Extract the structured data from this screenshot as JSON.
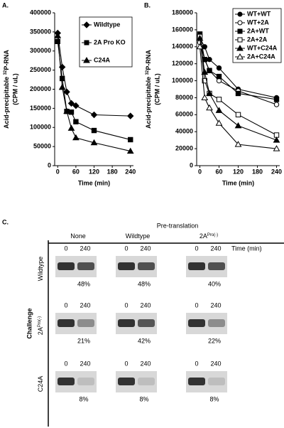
{
  "chart_data": [
    {
      "type": "line",
      "panel_label": "A.",
      "y_label": [
        "Acid-precipitable ",
        "32",
        "P-RNA"
      ],
      "y_label_2": "(CPM / uL)",
      "x_label": "Time (min)",
      "x": [
        0,
        15,
        30,
        45,
        60,
        120,
        240
      ],
      "xlim": [
        -10,
        250
      ],
      "xticks": [
        0,
        60,
        120,
        180,
        240
      ],
      "ylim": [
        0,
        400000
      ],
      "yticks": [
        0,
        50000,
        100000,
        150000,
        200000,
        250000,
        300000,
        350000,
        400000
      ],
      "series": [
        {
          "name": "Wildtype",
          "color": "#000000",
          "marker": "diamond",
          "filled": true,
          "values": [
            347000,
            258000,
            193000,
            163000,
            157000,
            133000,
            130000
          ]
        },
        {
          "name": "2A Pro KO",
          "color": "#000000",
          "marker": "square",
          "filled": true,
          "values": [
            325000,
            228000,
            142000,
            140000,
            115000,
            92000,
            68000
          ]
        },
        {
          "name": "C24A",
          "color": "#000000",
          "marker": "triangle",
          "filled": true,
          "values": [
            340000,
            205000,
            142000,
            98000,
            73000,
            60000,
            38000
          ]
        }
      ]
    },
    {
      "type": "line",
      "panel_label": "B.",
      "y_label": [
        "Acid-precipitable ",
        "32",
        "P-RNA"
      ],
      "y_label_2": "(CPM / uL)",
      "x_label": "Time (min)",
      "x": [
        0,
        15,
        30,
        60,
        120,
        240
      ],
      "xlim": [
        -10,
        250
      ],
      "xticks": [
        0,
        60,
        120,
        180,
        240
      ],
      "ylim": [
        0,
        180000
      ],
      "yticks": [
        0,
        20000,
        40000,
        60000,
        80000,
        100000,
        120000,
        140000,
        160000,
        180000
      ],
      "series": [
        {
          "name": "WT+WT",
          "color": "#000000",
          "marker": "circle",
          "filled": true,
          "values": [
            150000,
            140000,
            125000,
            115000,
            90000,
            80000
          ]
        },
        {
          "name": "WT+2A",
          "color": "#000000",
          "marker": "circle",
          "filled": false,
          "values": [
            145000,
            125000,
            112000,
            100000,
            88000,
            72000
          ]
        },
        {
          "name": "2A+WT",
          "color": "#000000",
          "marker": "square",
          "filled": true,
          "values": [
            155000,
            125000,
            112000,
            105000,
            85000,
            78000
          ]
        },
        {
          "name": "2A+2A",
          "color": "#000000",
          "marker": "square",
          "filled": false,
          "values": [
            152000,
            100000,
            85000,
            78000,
            60000,
            36000
          ]
        },
        {
          "name": "WT+C24A",
          "color": "#000000",
          "marker": "triangle",
          "filled": true,
          "values": [
            150000,
            110000,
            85000,
            65000,
            47000,
            30000
          ]
        },
        {
          "name": "2A+C24A",
          "color": "#000000",
          "marker": "triangle",
          "filled": false,
          "values": [
            140000,
            80000,
            68000,
            50000,
            25000,
            20000
          ]
        }
      ]
    }
  ],
  "panel_c": {
    "panel_label": "C.",
    "title": "Pre-translation",
    "side_label": "Challenge",
    "columns": [
      {
        "base": "None"
      },
      {
        "base": "Wildtype"
      },
      {
        "base": "2A",
        "sup": "Pro(-)"
      }
    ],
    "rows": [
      {
        "label": {
          "base": "Wildtype"
        },
        "times": [
          "0",
          "240"
        ],
        "time_unit": "Time (min)",
        "percents": [
          "48%",
          "48%",
          "40%"
        ]
      },
      {
        "label": {
          "base": "2A",
          "sup": "Pro(-)"
        },
        "times": [
          "0",
          "240"
        ],
        "percents": [
          "21%",
          "42%",
          "22%"
        ]
      },
      {
        "label": {
          "base": "C24A"
        },
        "times": [
          "0",
          "240"
        ],
        "percents": [
          "8%",
          "8%",
          "8%"
        ]
      }
    ]
  }
}
